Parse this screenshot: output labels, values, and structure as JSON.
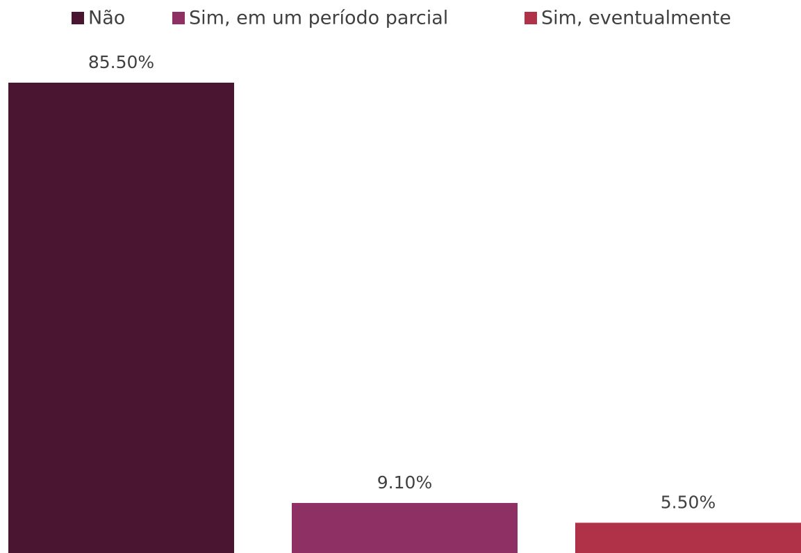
{
  "chart_data": {
    "type": "bar",
    "categories": [
      null
    ],
    "series": [
      {
        "name": "Não",
        "color": "#4a1530",
        "values": [
          85.5
        ],
        "value_labels": [
          "85.50%"
        ]
      },
      {
        "name": "Sim, em um período parcial",
        "color": "#8e3063",
        "values": [
          9.1
        ],
        "value_labels": [
          "9.10%"
        ]
      },
      {
        "name": "Sim, eventualmente",
        "color": "#b03248",
        "values": [
          5.5
        ],
        "value_labels": [
          "5.50%"
        ]
      }
    ],
    "legend": "top"
  }
}
